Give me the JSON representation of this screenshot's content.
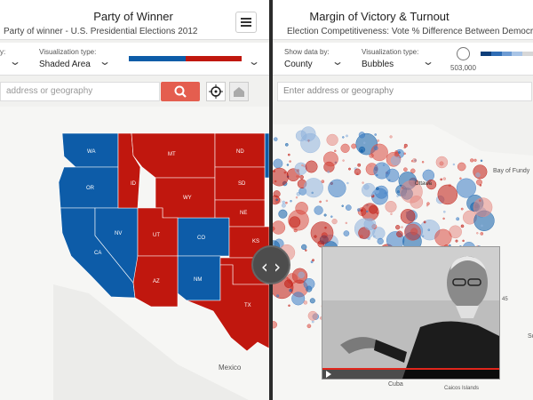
{
  "left_panel": {
    "title": "Party of Winner",
    "subtitle": "Party of winner - U.S. Presidential Elections 2012",
    "show_data_by_partial": "y:",
    "visualization_label": "Visualization type:",
    "visualization_value": "Shaded Area",
    "search_placeholder": "address or geography",
    "legend_colors": [
      "#0d5ca8",
      "#c0170e"
    ],
    "state_labels": [
      "WA",
      "OR",
      "CA",
      "NV",
      "ID",
      "MT",
      "WY",
      "UT",
      "AZ",
      "CO",
      "NM",
      "ND",
      "SD",
      "NE",
      "KS",
      "TX"
    ],
    "place_labels": {
      "mexico": "Mexico"
    }
  },
  "right_panel": {
    "title": "Margin of Victory & Turnout",
    "subtitle": "Election Competitiveness: Vote % Difference Between Democratic",
    "show_data_label": "Show data by:",
    "show_data_value": "County",
    "visualization_label": "Visualization type:",
    "visualization_value": "Bubbles",
    "bubble_legend_value": "503,000",
    "search_placeholder": "Enter address or geography",
    "place_labels": {
      "ottawa": "Ottawa",
      "bay_of_fundy": "Bay of Fundy",
      "cuba": "Cuba",
      "caicos": "Caicos Islands",
      "sc": "Sc",
      "label_45": "45"
    }
  },
  "icons": [
    "menu-icon",
    "search-icon",
    "locate-icon",
    "home-icon",
    "chevron-down-icon",
    "swipe-arrows-icon"
  ],
  "colors": {
    "republican": "#c0170e",
    "democrat": "#0d5ca8",
    "accent_button": "#e45e4f"
  }
}
